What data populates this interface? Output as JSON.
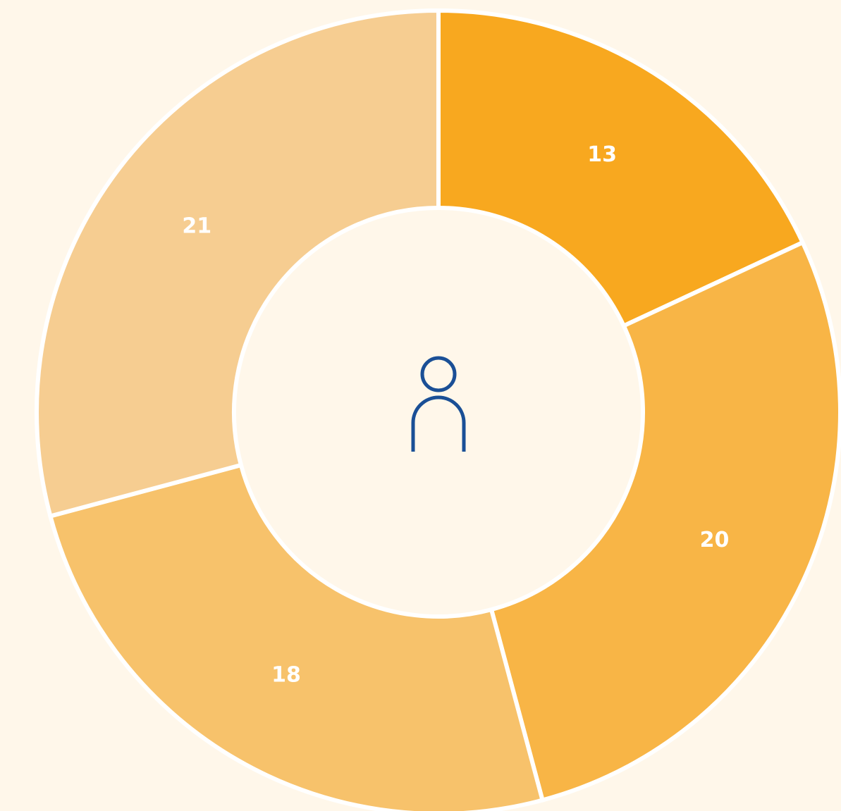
{
  "chart_data": {
    "type": "donut",
    "values": [
      13,
      20,
      18,
      21
    ],
    "colors": [
      "#f8a81f",
      "#f8b546",
      "#f7c26b",
      "#f6cd91"
    ],
    "start_angle": 0,
    "direction": "clockwise"
  }
}
